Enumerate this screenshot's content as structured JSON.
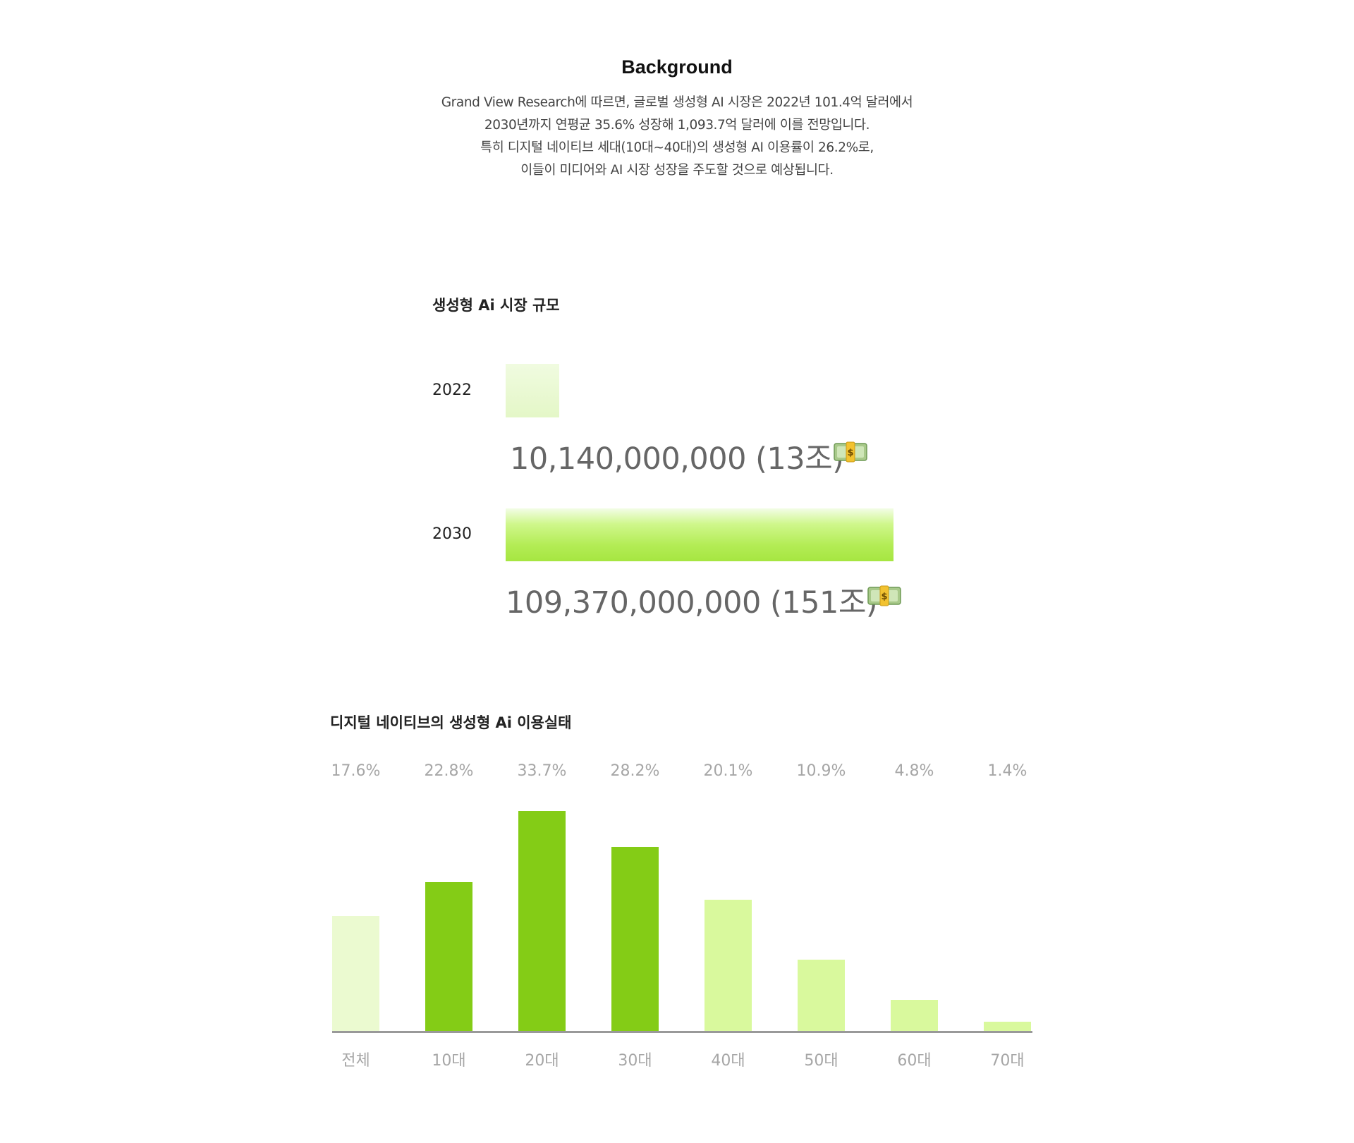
{
  "background": {
    "title": "Background",
    "lines": [
      "Grand View Research에 따르면, 글로벌 생성형 AI 시장은 2022년 101.4억 달러에서",
      "2030년까지 연평균 35.6% 성장해 1,093.7억 달러에 이를 전망입니다.",
      "특히 디지털 네이티브 세대(10대~40대)의 생성형 AI 이용률이 26.2%로,",
      "이들이 미디어와 AI 시장 성장을 주도할 것으로 예상됩니다."
    ]
  },
  "market": {
    "title": "생성형 Ai 시장 규모",
    "icon": "money-bag-icon"
  },
  "usage": {
    "title": "디지털 네이티브의 생성형 Ai 이용실태"
  },
  "colors": {
    "bar_light": "#ebfad0",
    "bar_dark": "#84cc16",
    "bar_mid": "#d9f99d",
    "baseline": "#999999",
    "muted_text": "#a6a6a6"
  },
  "chart_data": [
    {
      "type": "bar",
      "orientation": "horizontal",
      "title": "생성형 Ai 시장 규모",
      "categories": [
        "2022",
        "2030"
      ],
      "values": [
        10140000000,
        109370000000
      ],
      "data_labels": [
        "10,140,000,000 (13조)",
        "109,370,000,000 (151조)"
      ],
      "grid": false
    },
    {
      "type": "bar",
      "orientation": "vertical",
      "title": "디지털 네이티브의 생성형 Ai 이용실태",
      "categories": [
        "전체",
        "10대",
        "20대",
        "30대",
        "40대",
        "50대",
        "60대",
        "70대"
      ],
      "values": [
        17.6,
        22.8,
        33.7,
        28.2,
        20.1,
        10.9,
        4.8,
        1.4
      ],
      "data_labels": [
        "17.6%",
        "22.8%",
        "33.7%",
        "28.2%",
        "20.1%",
        "10.9%",
        "4.8%",
        "1.4%"
      ],
      "bar_colors": [
        "#ebfad0",
        "#84cc16",
        "#84cc16",
        "#84cc16",
        "#d9f99d",
        "#d9f99d",
        "#d9f99d",
        "#d9f99d"
      ],
      "grid": false
    }
  ]
}
